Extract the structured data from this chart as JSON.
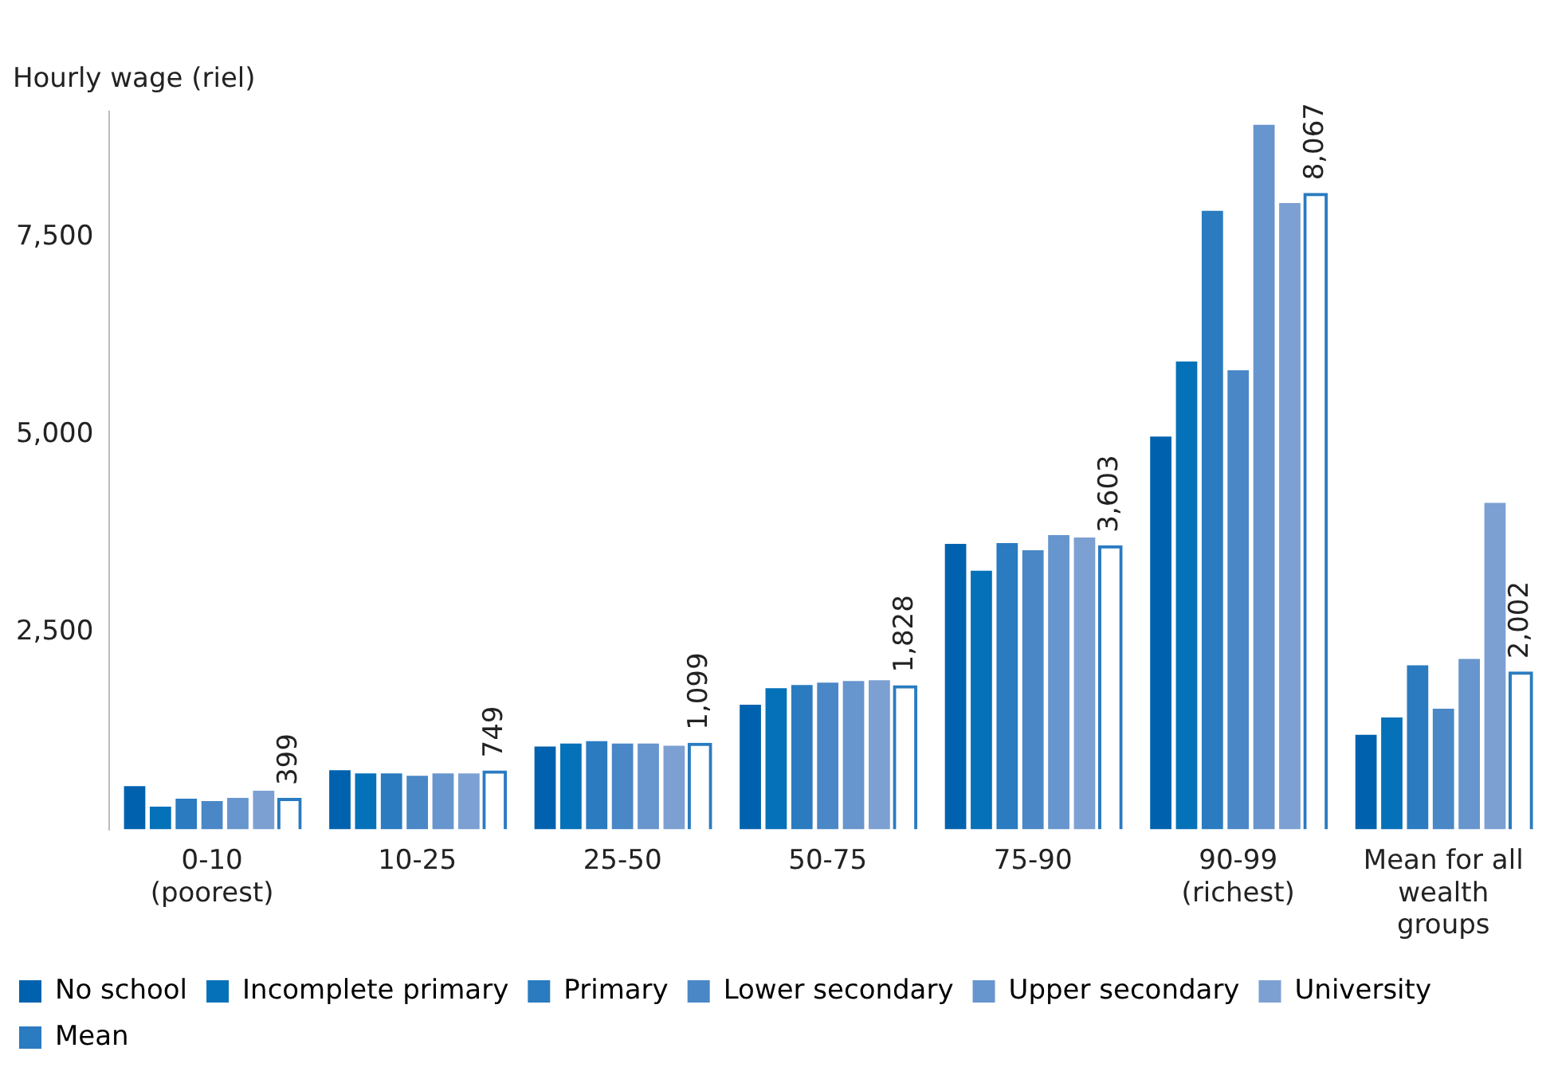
{
  "chart_data": {
    "type": "bar",
    "ylabel": "Hourly wage (riel)",
    "categories": [
      "0-10 (poorest)",
      "10-25",
      "25-50",
      "50-75",
      "75-90",
      "90-99 (richest)",
      "Mean for all wealth groups"
    ],
    "ylim": [
      0,
      9100
    ],
    "yticks": [
      {
        "value": 2500,
        "label": "2,500"
      },
      {
        "value": 5000,
        "label": "5,000"
      },
      {
        "value": 7500,
        "label": "7,500"
      }
    ],
    "grid": false,
    "legend": "bottom",
    "series": [
      {
        "name": "No school",
        "color": "#0062ae",
        "values": [
          570,
          770,
          1070,
          1600,
          3640,
          5000,
          1220
        ]
      },
      {
        "name": "Incomplete primary",
        "color": "#0571b8",
        "values": [
          310,
          730,
          1110,
          1810,
          3300,
          5950,
          1440
        ]
      },
      {
        "name": "Primary",
        "color": "#2a7bc0",
        "values": [
          410,
          730,
          1140,
          1850,
          3650,
          7860,
          2100
        ]
      },
      {
        "name": "Lower secondary",
        "color": "#4a87c6",
        "values": [
          380,
          700,
          1110,
          1880,
          3560,
          5840,
          1550
        ]
      },
      {
        "name": "Upper secondary",
        "color": "#6795cd",
        "values": [
          420,
          730,
          1110,
          1900,
          3750,
          8950,
          2180
        ]
      },
      {
        "name": "University",
        "color": "#7ca0d2",
        "values": [
          510,
          730,
          1080,
          1910,
          3720,
          7960,
          4160
        ]
      },
      {
        "name": "Mean",
        "color": "#2a7bc0",
        "values": [
          399,
          749,
          1099,
          1828,
          3603,
          8067,
          2002
        ],
        "value_labels": [
          "399",
          "749",
          "1,099",
          "1,828",
          "3,603",
          "8,067",
          "2,002"
        ]
      }
    ]
  }
}
